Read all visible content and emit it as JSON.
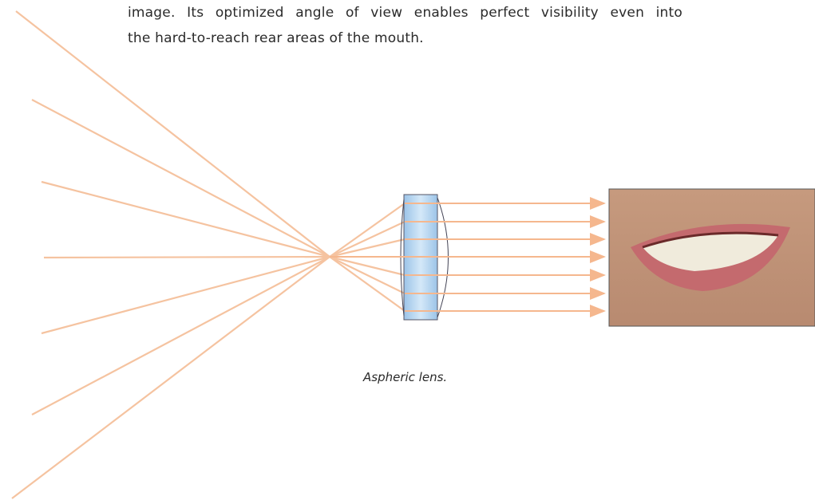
{
  "paragraph": {
    "lines": [
      "image. Its optimized angle of view enables perfect visibility even into",
      "the hard-to-reach rear areas of the mouth."
    ]
  },
  "figure": {
    "caption": "Aspheric lens."
  }
}
